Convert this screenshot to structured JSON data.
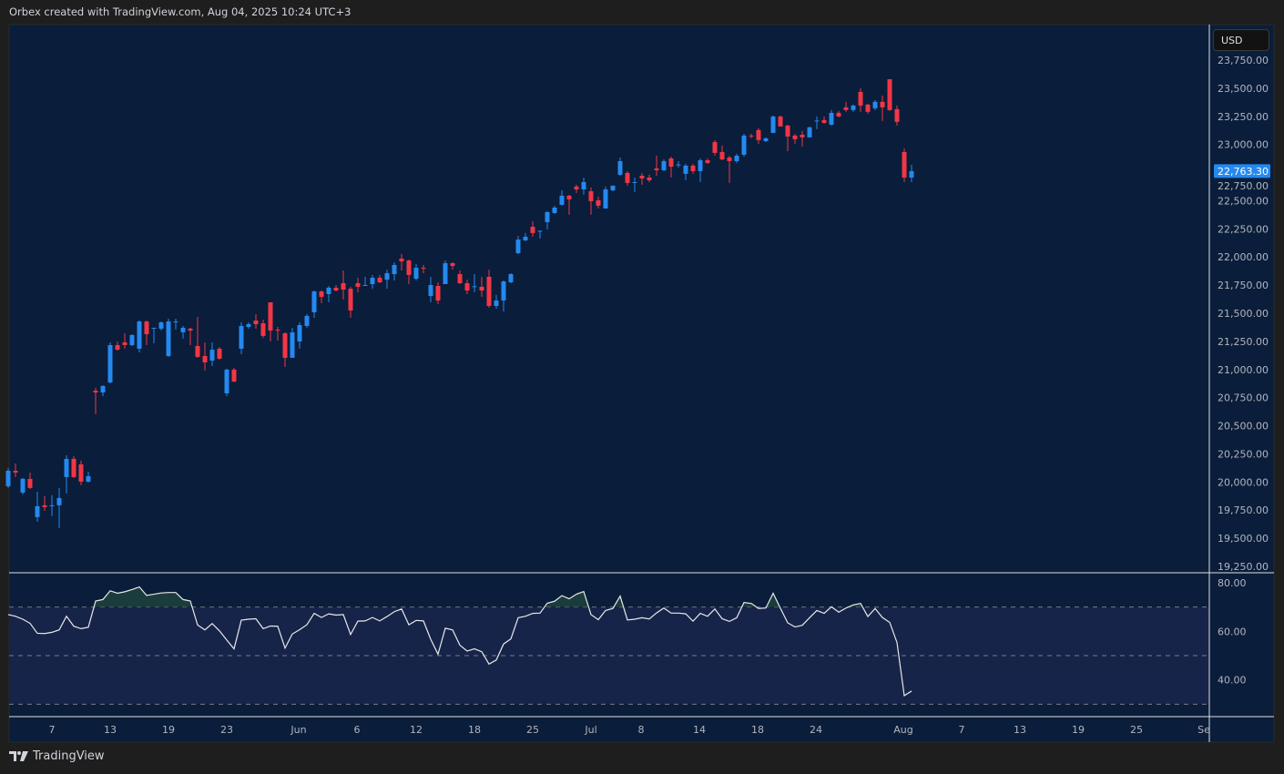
{
  "header": {
    "attribution": "Orbex created with TradingView.com, Aug 04, 2025 10:24 UTC+3"
  },
  "currency_button": "USD",
  "footer": {
    "logo_text": "TradingView"
  },
  "colors": {
    "up": "#2489f0",
    "down": "#f23645",
    "background": "#0a1d3a",
    "rsi_band": "#172449",
    "rsi_line": "#e8e8e8",
    "overbought_fill": "#1b3c3c",
    "last_price_bg": "#2489f0"
  },
  "chart_data": [
    {
      "type": "candlestick",
      "y_axis": {
        "range": [
          19250,
          23750
        ],
        "ticks": [
          "23,750.00",
          "23,500.00",
          "23,250.00",
          "23,000.00",
          "22,750.00",
          "22,500.00",
          "22,250.00",
          "22,000.00",
          "21,750.00",
          "21,500.00",
          "21,250.00",
          "21,000.00",
          "20,750.00",
          "20,500.00",
          "20,250.00",
          "20,000.00",
          "19,750.00",
          "19,500.00",
          "19,250.00"
        ]
      },
      "last_price": {
        "value": 22763.3,
        "label": "22,763.30"
      },
      "x_ticks": [
        "7",
        "13",
        "19",
        "23",
        "Jun",
        "6",
        "12",
        "18",
        "25",
        "Jul",
        "8",
        "14",
        "18",
        "24",
        "Aug",
        "7",
        "13",
        "19",
        "25",
        "Se"
      ],
      "grid": false,
      "ohlc": [
        [
          19963,
          20125,
          19947,
          20100
        ],
        [
          20100,
          20165,
          20043,
          20084
        ],
        [
          19906,
          20036,
          19890,
          20028
        ],
        [
          20028,
          20084,
          19939,
          19947
        ],
        [
          19688,
          19914,
          19647,
          19785
        ],
        [
          19793,
          19874,
          19744,
          19777
        ],
        [
          19785,
          19882,
          19696,
          19793
        ],
        [
          19793,
          19947,
          19591,
          19858
        ],
        [
          20044,
          20238,
          19898,
          20206
        ],
        [
          20206,
          20230,
          20036,
          20044
        ],
        [
          20157,
          20190,
          19971,
          20003
        ],
        [
          20003,
          20092,
          19995,
          20052
        ],
        [
          20812,
          20837,
          20603,
          20796
        ],
        [
          20796,
          20861,
          20764,
          20853
        ],
        [
          20885,
          21241,
          20877,
          21217
        ],
        [
          21217,
          21249,
          21168,
          21176
        ],
        [
          21241,
          21322,
          21185,
          21217
        ],
        [
          21217,
          21314,
          21209,
          21306
        ],
        [
          21185,
          21435,
          21152,
          21427
        ],
        [
          21427,
          21435,
          21217,
          21314
        ],
        [
          21363,
          21371,
          21233,
          21371
        ],
        [
          21363,
          21427,
          21346,
          21419
        ],
        [
          21120,
          21452,
          21112,
          21427
        ],
        [
          21419,
          21452,
          21355,
          21427
        ],
        [
          21331,
          21387,
          21274,
          21371
        ],
        [
          21363,
          21371,
          21217,
          21346
        ],
        [
          21209,
          21468,
          21104,
          21112
        ],
        [
          21120,
          21241,
          20990,
          21063
        ],
        [
          21079,
          21241,
          21031,
          21176
        ],
        [
          21185,
          21201,
          21088,
          21096
        ],
        [
          20788,
          21007,
          20764,
          20999
        ],
        [
          20999,
          21015,
          20885,
          20893
        ],
        [
          21185,
          21419,
          21136,
          21387
        ],
        [
          21379,
          21419,
          21363,
          21403
        ],
        [
          21435,
          21492,
          21363,
          21403
        ],
        [
          21411,
          21443,
          21282,
          21298
        ],
        [
          21597,
          21597,
          21249,
          21346
        ],
        [
          21354,
          21379,
          21257,
          21346
        ],
        [
          21322,
          21330,
          21023,
          21104
        ],
        [
          21104,
          21371,
          21104,
          21330
        ],
        [
          21249,
          21419,
          21185,
          21395
        ],
        [
          21387,
          21492,
          21371,
          21476
        ],
        [
          21508,
          21702,
          21460,
          21694
        ],
        [
          21694,
          21702,
          21589,
          21646
        ],
        [
          21670,
          21743,
          21597,
          21727
        ],
        [
          21727,
          21751,
          21694,
          21702
        ],
        [
          21767,
          21880,
          21621,
          21710
        ],
        [
          21718,
          21735,
          21460,
          21524
        ],
        [
          21767,
          21816,
          21686,
          21735
        ],
        [
          21743,
          21824,
          21743,
          21751
        ],
        [
          21759,
          21840,
          21718,
          21816
        ],
        [
          21816,
          21840,
          21767,
          21775
        ],
        [
          21799,
          21888,
          21718,
          21856
        ],
        [
          21848,
          21953,
          21791,
          21929
        ],
        [
          21986,
          22026,
          21880,
          21961
        ],
        [
          21969,
          21977,
          21759,
          21840
        ],
        [
          21807,
          21937,
          21791,
          21904
        ],
        [
          21904,
          21929,
          21856,
          21896
        ],
        [
          21654,
          21824,
          21597,
          21751
        ],
        [
          21743,
          21775,
          21581,
          21613
        ],
        [
          21759,
          21969,
          21759,
          21945
        ],
        [
          21945,
          21953,
          21888,
          21921
        ],
        [
          21848,
          21880,
          21759,
          21767
        ],
        [
          21767,
          21799,
          21670,
          21702
        ],
        [
          21735,
          21848,
          21686,
          21740
        ],
        [
          21735,
          21824,
          21646,
          21702
        ],
        [
          21824,
          21888,
          21549,
          21565
        ],
        [
          21565,
          21662,
          21541,
          21613
        ],
        [
          21613,
          21791,
          21516,
          21783
        ],
        [
          21775,
          21856,
          21767,
          21848
        ],
        [
          22034,
          22188,
          22026,
          22155
        ],
        [
          22148,
          22213,
          22140,
          22180
        ],
        [
          22269,
          22318,
          22180,
          22213
        ],
        [
          22229,
          22237,
          22164,
          22233
        ],
        [
          22310,
          22407,
          22245,
          22399
        ],
        [
          22391,
          22456,
          22383,
          22439
        ],
        [
          22464,
          22593,
          22456,
          22545
        ],
        [
          22545,
          22553,
          22375,
          22512
        ],
        [
          22626,
          22642,
          22569,
          22601
        ],
        [
          22601,
          22706,
          22553,
          22666
        ],
        [
          22585,
          22617,
          22375,
          22496
        ],
        [
          22504,
          22537,
          22431,
          22456
        ],
        [
          22431,
          22626,
          22431,
          22601
        ],
        [
          22593,
          22634,
          22585,
          22634
        ],
        [
          22731,
          22884,
          22722,
          22852
        ],
        [
          22747,
          22763,
          22634,
          22658
        ],
        [
          22662,
          22706,
          22577,
          22666
        ],
        [
          22722,
          22747,
          22642,
          22698
        ],
        [
          22706,
          22731,
          22666,
          22682
        ],
        [
          22787,
          22900,
          22722,
          22771
        ],
        [
          22771,
          22868,
          22763,
          22852
        ],
        [
          22876,
          22892,
          22706,
          22803
        ],
        [
          22818,
          22852,
          22795,
          22822
        ],
        [
          22739,
          22828,
          22682,
          22812
        ],
        [
          22812,
          22828,
          22739,
          22763
        ],
        [
          22763,
          22876,
          22666,
          22860
        ],
        [
          22860,
          22876,
          22828,
          22836
        ],
        [
          23022,
          23039,
          22900,
          22925
        ],
        [
          22933,
          22990,
          22860,
          22868
        ],
        [
          22884,
          22900,
          22658,
          22852
        ],
        [
          22852,
          22917,
          22836,
          22900
        ],
        [
          22909,
          23095,
          22892,
          23079
        ],
        [
          23079,
          23095,
          23055,
          23071
        ],
        [
          23128,
          23144,
          23006,
          23039
        ],
        [
          23030,
          23063,
          23022,
          23055
        ],
        [
          23103,
          23257,
          23103,
          23249
        ],
        [
          23249,
          23257,
          23160,
          23160
        ],
        [
          23168,
          23176,
          22941,
          23071
        ],
        [
          23079,
          23095,
          23006,
          23047
        ],
        [
          23087,
          23120,
          22982,
          23063
        ],
        [
          23063,
          23160,
          23063,
          23152
        ],
        [
          23209,
          23249,
          23136,
          23213
        ],
        [
          23217,
          23249,
          23184,
          23192
        ],
        [
          23176,
          23306,
          23168,
          23281
        ],
        [
          23281,
          23298,
          23241,
          23249
        ],
        [
          23330,
          23379,
          23290,
          23306
        ],
        [
          23306,
          23354,
          23290,
          23346
        ],
        [
          23467,
          23500,
          23290,
          23346
        ],
        [
          23354,
          23362,
          23273,
          23290
        ],
        [
          23322,
          23395,
          23306,
          23379
        ],
        [
          23379,
          23435,
          23209,
          23330
        ],
        [
          23580,
          23580,
          23298,
          23306
        ],
        [
          23314,
          23346,
          23168,
          23201
        ],
        [
          22933,
          22965,
          22666,
          22706
        ],
        [
          22706,
          22819,
          22666,
          22763.3
        ]
      ]
    },
    {
      "type": "line",
      "y_axis": {
        "range": [
          25,
          85
        ],
        "ticks": [
          "80.00",
          "60.00",
          "40.00"
        ]
      },
      "levels": [
        70,
        50,
        30
      ],
      "values": [
        66.9,
        66.2,
        65.0,
        63.3,
        59.2,
        59.1,
        59.6,
        60.6,
        66.2,
        62.1,
        61.1,
        61.7,
        72.5,
        73.1,
        76.7,
        75.7,
        76.3,
        77.2,
        78.3,
        74.8,
        75.3,
        75.8,
        76.0,
        76.0,
        73.1,
        72.5,
        62.6,
        60.6,
        63.2,
        60.2,
        56.4,
        52.8,
        64.6,
        65.0,
        65.2,
        61.1,
        62.2,
        62.1,
        53.1,
        58.9,
        60.7,
        62.7,
        67.4,
        65.7,
        67.2,
        66.7,
        66.9,
        58.7,
        64.2,
        64.3,
        65.7,
        64.3,
        66.1,
        68.1,
        69.2,
        62.7,
        64.5,
        64.3,
        56.7,
        50.6,
        61.3,
        60.6,
        54.3,
        51.9,
        52.8,
        51.6,
        46.5,
        48.2,
        54.8,
        56.9,
        65.6,
        66.2,
        67.4,
        67.5,
        71.6,
        72.4,
        74.7,
        73.4,
        75.3,
        76.4,
        66.9,
        64.8,
        68.6,
        69.4,
        74.5,
        64.7,
        65.0,
        65.6,
        65.1,
        67.6,
        69.6,
        67.5,
        67.5,
        67.2,
        64.2,
        67.4,
        66.2,
        69.2,
        65.2,
        64.1,
        65.6,
        71.9,
        71.5,
        69.4,
        69.6,
        75.7,
        69.5,
        63.5,
        61.8,
        62.5,
        65.6,
        68.6,
        67.4,
        70.1,
        67.9,
        69.6,
        70.9,
        71.5,
        66.1,
        69.4,
        65.7,
        63.7,
        55.4,
        33.5,
        35.4
      ]
    }
  ]
}
